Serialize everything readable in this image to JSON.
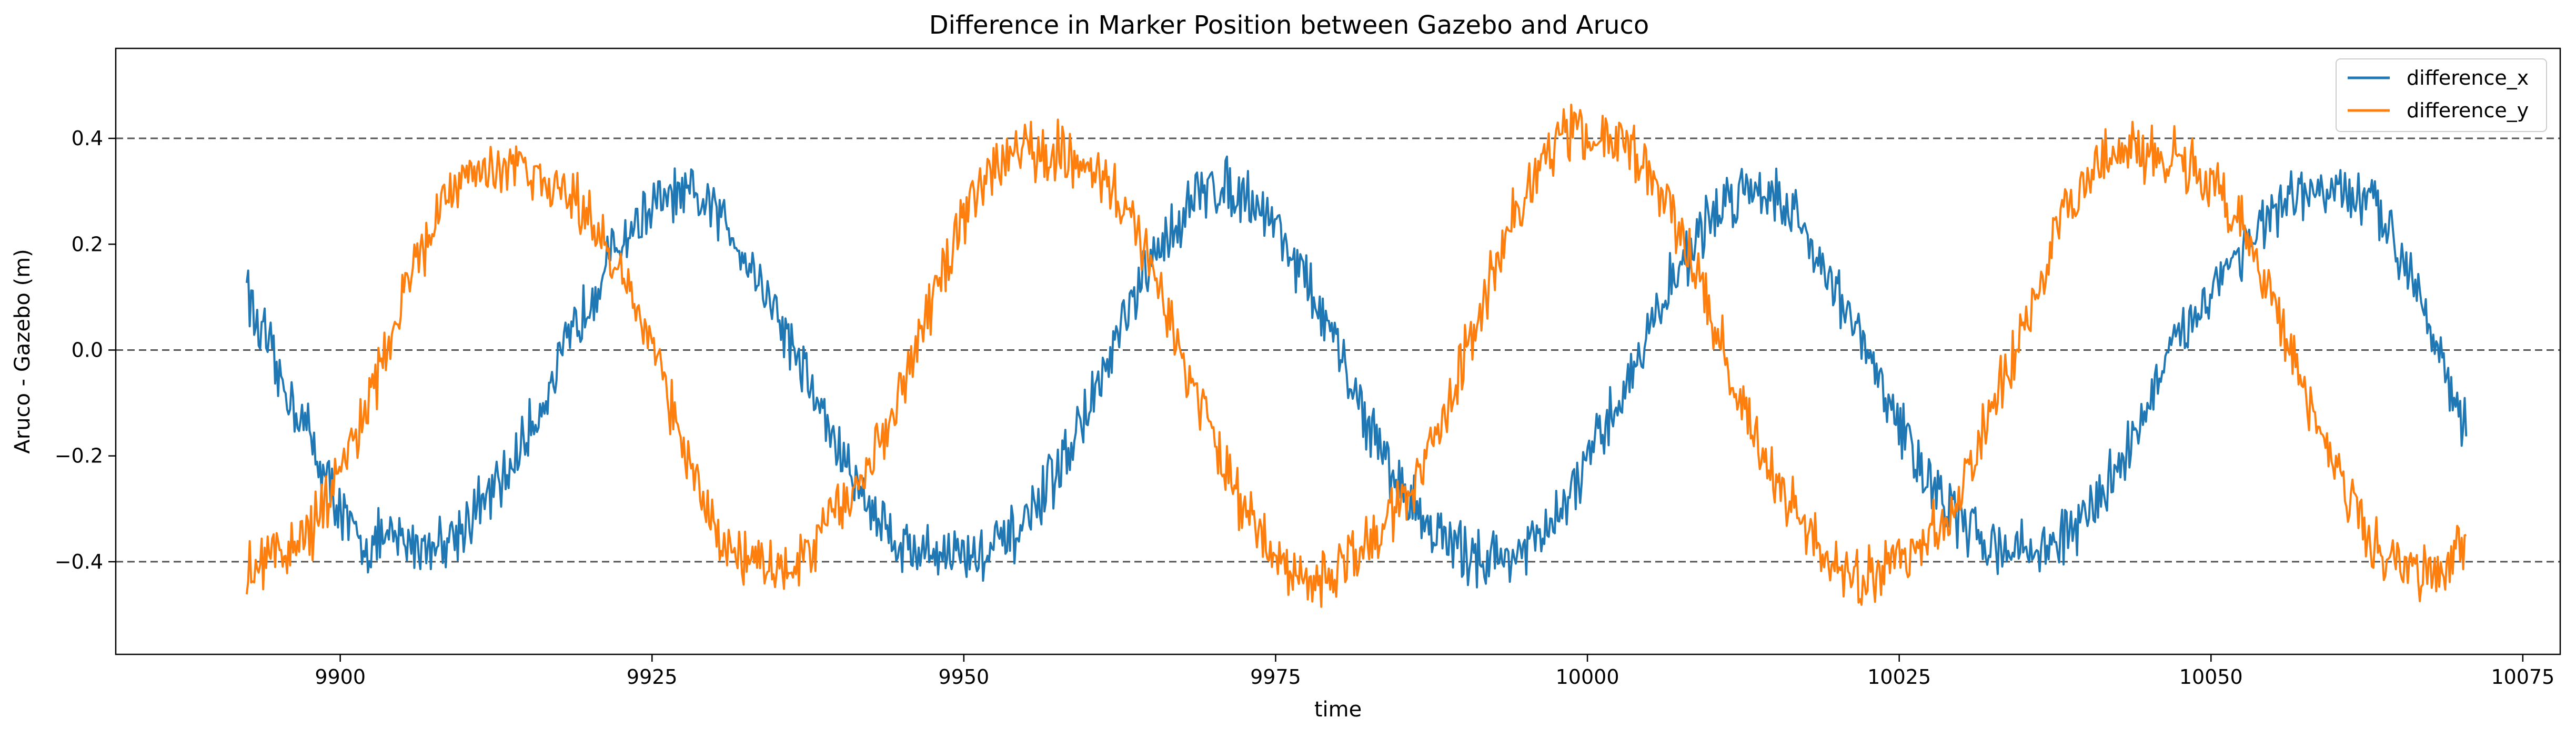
{
  "chart_data": {
    "type": "line",
    "title": "Difference in Marker Position between Gazebo and Aruco",
    "xlabel": "time",
    "ylabel": "Aruco - Gazebo (m)",
    "xlim": [
      9882,
      10078
    ],
    "ylim": [
      -0.575,
      0.57
    ],
    "xticks": [
      9900,
      9925,
      9950,
      9975,
      10000,
      10025,
      10050,
      10075
    ],
    "yticks": [
      -0.4,
      -0.2,
      0.0,
      0.2,
      0.4
    ],
    "ytick_labels": [
      "−0.4",
      "−0.2",
      "0.0",
      "0.2",
      "0.4"
    ],
    "reference_lines": [
      -0.4,
      0.0,
      0.4
    ],
    "grid": false,
    "legend_position": "top-right",
    "x_range": [
      9892.5,
      10070.5
    ],
    "colors": {
      "difference_x": "#1f77b4",
      "difference_y": "#ff7f0e",
      "reference": "#555555"
    },
    "series": [
      {
        "name": "difference_x",
        "color": "#1f77b4",
        "points": [
          [
            9892.5,
            0.15
          ],
          [
            9893,
            0.06
          ],
          [
            9894,
            0.02
          ],
          [
            9895,
            -0.05
          ],
          [
            9896,
            -0.09
          ],
          [
            9897,
            -0.13
          ],
          [
            9898,
            -0.19
          ],
          [
            9899,
            -0.25
          ],
          [
            9900,
            -0.3
          ],
          [
            9901,
            -0.35
          ],
          [
            9902,
            -0.37
          ],
          [
            9903,
            -0.36
          ],
          [
            9905,
            -0.36
          ],
          [
            9907,
            -0.37
          ],
          [
            9909,
            -0.35
          ],
          [
            9911,
            -0.3
          ],
          [
            9913,
            -0.25
          ],
          [
            9915,
            -0.16
          ],
          [
            9917,
            -0.06
          ],
          [
            9919,
            0.05
          ],
          [
            9921,
            0.15
          ],
          [
            9923,
            0.22
          ],
          [
            9925,
            0.27
          ],
          [
            9927,
            0.29
          ],
          [
            9929,
            0.28
          ],
          [
            9931,
            0.24
          ],
          [
            9933,
            0.16
          ],
          [
            9935,
            0.07
          ],
          [
            9937,
            -0.03
          ],
          [
            9939,
            -0.14
          ],
          [
            9941,
            -0.24
          ],
          [
            9943,
            -0.31
          ],
          [
            9945,
            -0.37
          ],
          [
            9947,
            -0.38
          ],
          [
            9949,
            -0.38
          ],
          [
            9951,
            -0.39
          ],
          [
            9953,
            -0.37
          ],
          [
            9955,
            -0.33
          ],
          [
            9957,
            -0.25
          ],
          [
            9959,
            -0.16
          ],
          [
            9961,
            -0.06
          ],
          [
            9963,
            0.06
          ],
          [
            9965,
            0.16
          ],
          [
            9967,
            0.24
          ],
          [
            9969,
            0.3
          ],
          [
            9971,
            0.31
          ],
          [
            9973,
            0.29
          ],
          [
            9975,
            0.24
          ],
          [
            9977,
            0.15
          ],
          [
            9979,
            0.05
          ],
          [
            9981,
            -0.06
          ],
          [
            9983,
            -0.17
          ],
          [
            9985,
            -0.26
          ],
          [
            9987,
            -0.32
          ],
          [
            9989,
            -0.37
          ],
          [
            9991,
            -0.39
          ],
          [
            9993,
            -0.39
          ],
          [
            9995,
            -0.38
          ],
          [
            9997,
            -0.34
          ],
          [
            9999,
            -0.26
          ],
          [
            10001,
            -0.17
          ],
          [
            10003,
            -0.07
          ],
          [
            10005,
            0.04
          ],
          [
            10007,
            0.14
          ],
          [
            10009,
            0.22
          ],
          [
            10011,
            0.28
          ],
          [
            10013,
            0.31
          ],
          [
            10015,
            0.3
          ],
          [
            10017,
            0.24
          ],
          [
            10019,
            0.16
          ],
          [
            10021,
            0.06
          ],
          [
            10023,
            -0.04
          ],
          [
            10025,
            -0.14
          ],
          [
            10027,
            -0.23
          ],
          [
            10029,
            -0.3
          ],
          [
            10031,
            -0.35
          ],
          [
            10033,
            -0.37
          ],
          [
            10035,
            -0.38
          ],
          [
            10037,
            -0.37
          ],
          [
            10039,
            -0.34
          ],
          [
            10041,
            -0.28
          ],
          [
            10043,
            -0.2
          ],
          [
            10045,
            -0.1
          ],
          [
            10047,
            0.0
          ],
          [
            10049,
            0.08
          ],
          [
            10051,
            0.15
          ],
          [
            10053,
            0.21
          ],
          [
            10055,
            0.25
          ],
          [
            10057,
            0.29
          ],
          [
            10059,
            0.3
          ],
          [
            10061,
            0.29
          ],
          [
            10063,
            0.27
          ],
          [
            10065,
            0.2
          ],
          [
            10066,
            0.15
          ],
          [
            10067,
            0.1
          ],
          [
            10068,
            0.03
          ],
          [
            10069,
            -0.06
          ],
          [
            10070,
            -0.13
          ],
          [
            10070.5,
            -0.16
          ]
        ]
      },
      {
        "name": "difference_y",
        "color": "#ff7f0e",
        "points": [
          [
            9892.5,
            -0.43
          ],
          [
            9894,
            -0.4
          ],
          [
            9896,
            -0.37
          ],
          [
            9898,
            -0.33
          ],
          [
            9900,
            -0.24
          ],
          [
            9902,
            -0.12
          ],
          [
            9904,
            0.01
          ],
          [
            9906,
            0.16
          ],
          [
            9908,
            0.27
          ],
          [
            9910,
            0.33
          ],
          [
            9912,
            0.35
          ],
          [
            9914,
            0.35
          ],
          [
            9916,
            0.33
          ],
          [
            9918,
            0.3
          ],
          [
            9920,
            0.25
          ],
          [
            9922,
            0.17
          ],
          [
            9924,
            0.06
          ],
          [
            9926,
            -0.07
          ],
          [
            9928,
            -0.22
          ],
          [
            9930,
            -0.33
          ],
          [
            9932,
            -0.39
          ],
          [
            9934,
            -0.41
          ],
          [
            9936,
            -0.41
          ],
          [
            9938,
            -0.37
          ],
          [
            9940,
            -0.3
          ],
          [
            9942,
            -0.24
          ],
          [
            9944,
            -0.14
          ],
          [
            9946,
            -0.02
          ],
          [
            9948,
            0.12
          ],
          [
            9950,
            0.25
          ],
          [
            9952,
            0.33
          ],
          [
            9954,
            0.37
          ],
          [
            9956,
            0.38
          ],
          [
            9958,
            0.37
          ],
          [
            9960,
            0.34
          ],
          [
            9962,
            0.31
          ],
          [
            9964,
            0.22
          ],
          [
            9966,
            0.1
          ],
          [
            9968,
            -0.05
          ],
          [
            9970,
            -0.17
          ],
          [
            9972,
            -0.28
          ],
          [
            9974,
            -0.36
          ],
          [
            9976,
            -0.41
          ],
          [
            9978,
            -0.43
          ],
          [
            9980,
            -0.42
          ],
          [
            9982,
            -0.38
          ],
          [
            9984,
            -0.33
          ],
          [
            9986,
            -0.26
          ],
          [
            9988,
            -0.16
          ],
          [
            9990,
            -0.03
          ],
          [
            9992,
            0.12
          ],
          [
            9994,
            0.25
          ],
          [
            9996,
            0.35
          ],
          [
            9998,
            0.41
          ],
          [
            10000,
            0.42
          ],
          [
            10002,
            0.4
          ],
          [
            10004,
            0.36
          ],
          [
            10006,
            0.3
          ],
          [
            10008,
            0.19
          ],
          [
            10010,
            0.06
          ],
          [
            10012,
            -0.08
          ],
          [
            10014,
            -0.2
          ],
          [
            10016,
            -0.28
          ],
          [
            10018,
            -0.35
          ],
          [
            10020,
            -0.41
          ],
          [
            10022,
            -0.43
          ],
          [
            10024,
            -0.41
          ],
          [
            10026,
            -0.38
          ],
          [
            10028,
            -0.34
          ],
          [
            10030,
            -0.26
          ],
          [
            10032,
            -0.14
          ],
          [
            10034,
            -0.02
          ],
          [
            10036,
            0.12
          ],
          [
            10038,
            0.25
          ],
          [
            10040,
            0.32
          ],
          [
            10042,
            0.37
          ],
          [
            10044,
            0.38
          ],
          [
            10046,
            0.37
          ],
          [
            10048,
            0.35
          ],
          [
            10050,
            0.32
          ],
          [
            10052,
            0.25
          ],
          [
            10054,
            0.15
          ],
          [
            10056,
            0.03
          ],
          [
            10058,
            -0.1
          ],
          [
            10060,
            -0.22
          ],
          [
            10062,
            -0.33
          ],
          [
            10064,
            -0.4
          ],
          [
            10066,
            -0.42
          ],
          [
            10068,
            -0.41
          ],
          [
            10070.5,
            -0.38
          ]
        ]
      }
    ]
  }
}
